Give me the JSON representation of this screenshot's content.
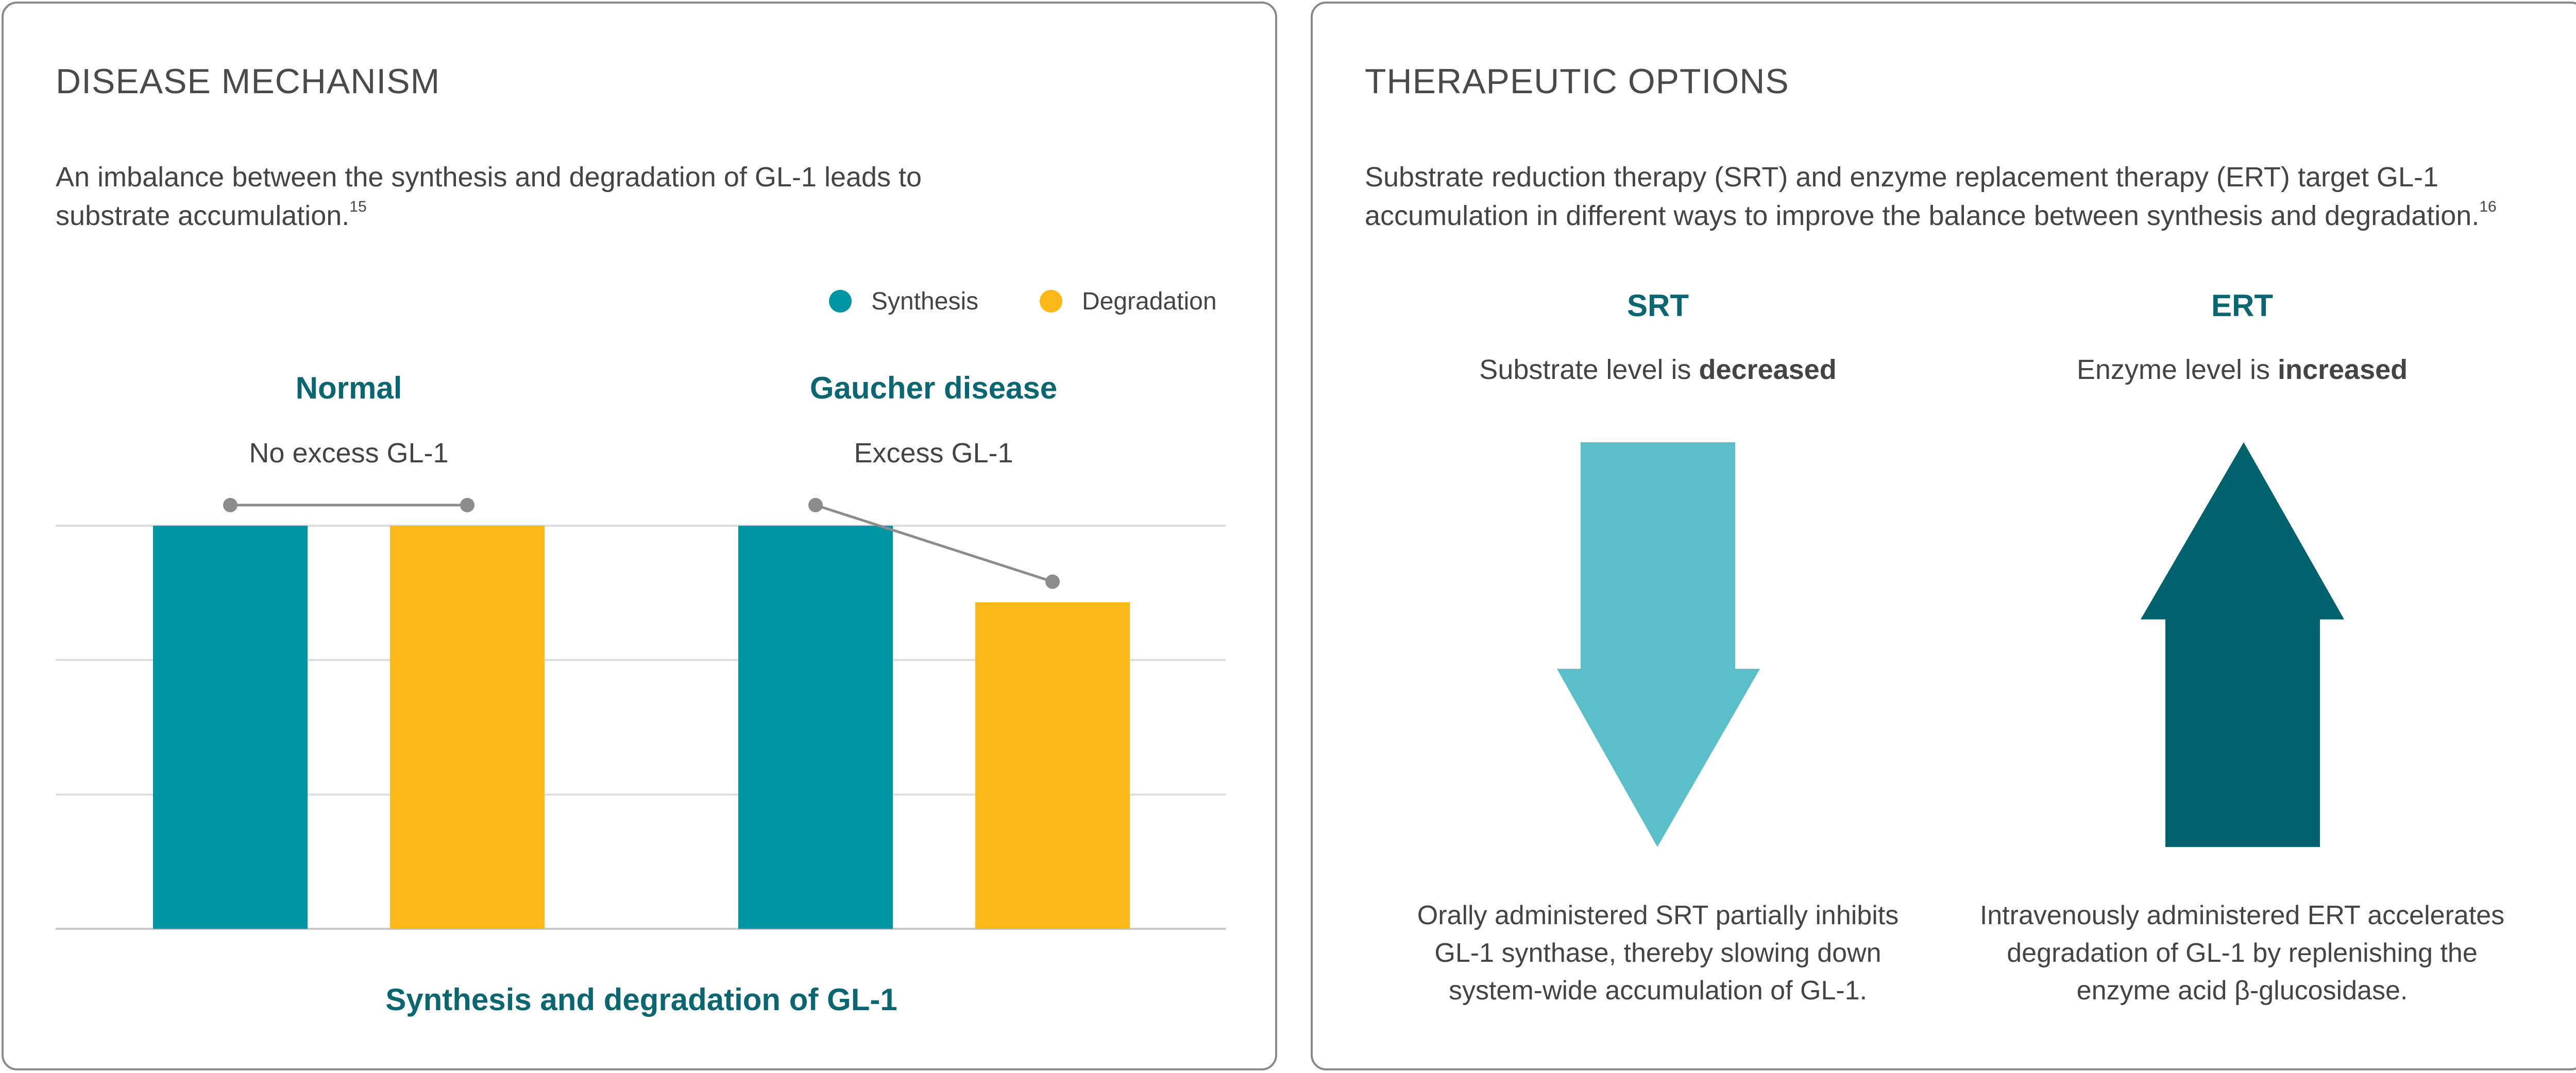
{
  "left_panel": {
    "title": "DISEASE MECHANISM",
    "intro_line1": "An imbalance between the synthesis and degradation of GL-1 leads to",
    "intro_line2": "substrate accumulation.",
    "intro_ref": "15",
    "legend": [
      {
        "label": "Synthesis",
        "color": "#0095a3"
      },
      {
        "label": "Degradation",
        "color": "#fbb818"
      }
    ],
    "groups": [
      {
        "heading": "Normal",
        "subheading": "No excess GL-1"
      },
      {
        "heading": "Gaucher disease",
        "subheading": "Excess GL-1"
      }
    ]
  },
  "chart_data": {
    "type": "bar",
    "title": "",
    "categories": [
      "Normal",
      "Gaucher disease"
    ],
    "series": [
      {
        "name": "Synthesis",
        "color": "#0095a3",
        "values": [
          100,
          100
        ]
      },
      {
        "name": "Degradation",
        "color": "#fbb818",
        "values": [
          100,
          81
        ]
      }
    ],
    "xlabel": "Synthesis and degradation of GL-1",
    "ylabel": "",
    "ylim": [
      0,
      100
    ],
    "gridlines": [
      0,
      33.3,
      66.7,
      100
    ],
    "grid": true,
    "legend_position": "top-right",
    "connectors": true
  },
  "right_panel": {
    "title": "THERAPEUTIC OPTIONS",
    "intro_line1": "Substrate reduction therapy (SRT) and enzyme replacement therapy (ERT) target GL-1",
    "intro_line2": "accumulation in different ways to improve the balance between synthesis and degradation.",
    "intro_ref": "16",
    "therapies": [
      {
        "name": "SRT",
        "level_prefix": "Substrate level is ",
        "level_emphasis": "decreased",
        "arrow_direction": "down",
        "arrow_color": "#5bbfc9",
        "desc_line1": "Orally administered SRT partially inhibits",
        "desc_line2": "GL-1 synthase, thereby slowing down",
        "desc_line3": "system-wide accumulation of GL-1."
      },
      {
        "name": "ERT",
        "level_prefix": "Enzyme level is ",
        "level_emphasis": "increased",
        "arrow_direction": "up",
        "arrow_color": "#00626d",
        "desc_line1": "Intravenously administered ERT accelerates",
        "desc_line2": "degradation of GL-1 by replenishing the",
        "desc_line3": "enzyme acid β-glucosidase."
      }
    ]
  }
}
